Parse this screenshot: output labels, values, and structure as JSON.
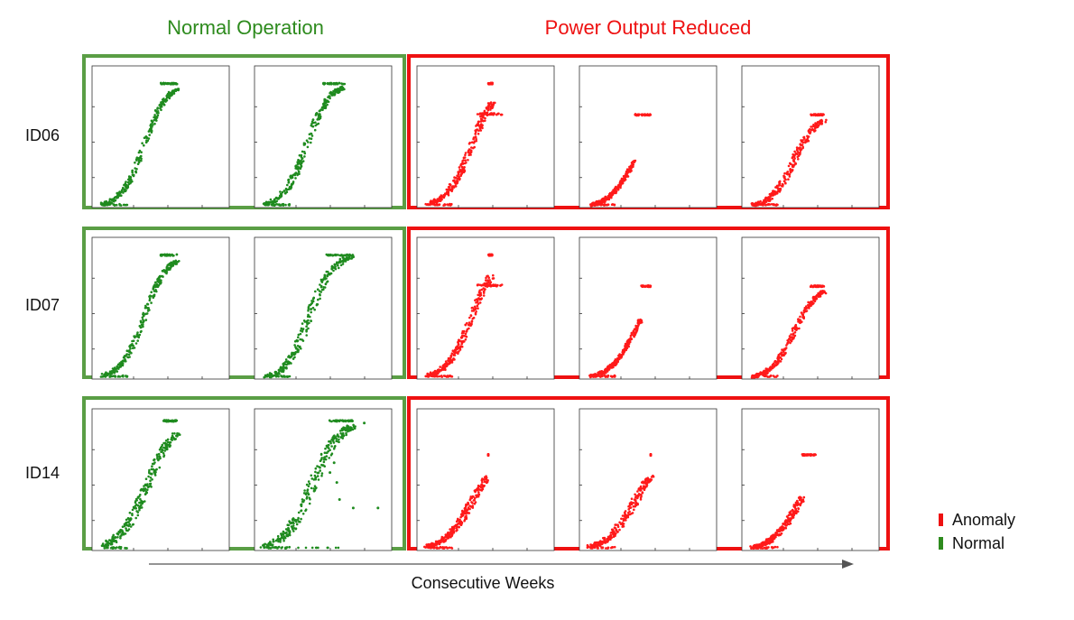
{
  "group_titles": {
    "normal": "Normal Operation",
    "anomaly": "Power Output Reduced"
  },
  "legend": [
    {
      "label": "Anomaly",
      "color": "#ee1111"
    },
    {
      "label": "Normal",
      "color": "#2e8b1e"
    }
  ],
  "x_axis_label": "Consecutive Weeks",
  "colors": {
    "normal": "#1f8b1f",
    "anomaly": "#ff1a1a",
    "normal_frame": "#5a9e45",
    "anomaly_frame": "#ee1111"
  },
  "chart_data": {
    "type": "scatter",
    "description_of_grid": "small multiples: 3 turbine rows x 5 consecutive weeks; each panel shows a sigmoid power curve scatter (x and y unlabeled, normalized 0-1)",
    "xlim": [
      0,
      1
    ],
    "ylim": [
      0,
      1
    ],
    "rows": [
      {
        "id": "ID06",
        "panels": [
          {
            "status": "Normal",
            "curve": {
              "x0": 0.38,
              "k": 12,
              "cap": 0.88,
              "xmax": 0.62,
              "spread": 0.04
            }
          },
          {
            "status": "Normal",
            "curve": {
              "x0": 0.38,
              "k": 12,
              "cap": 0.88,
              "xmax": 0.66,
              "spread": 0.05
            }
          },
          {
            "status": "Anomaly",
            "curve": {
              "x0": 0.4,
              "k": 11,
              "cap": 0.88,
              "xmax": 0.55,
              "spread": 0.05,
              "second_cap": 0.66,
              "second_xmax": 0.62
            }
          },
          {
            "status": "Anomaly",
            "curve": {
              "x0": 0.4,
              "k": 11,
              "cap": 0.66,
              "xmax": 0.4,
              "spread": 0.03
            }
          },
          {
            "status": "Anomaly",
            "curve": {
              "x0": 0.38,
              "k": 12,
              "cap": 0.66,
              "xmax": 0.6,
              "spread": 0.05
            }
          }
        ]
      },
      {
        "id": "ID07",
        "panels": [
          {
            "status": "Normal",
            "curve": {
              "x0": 0.38,
              "k": 12,
              "cap": 0.88,
              "xmax": 0.62,
              "spread": 0.04
            }
          },
          {
            "status": "Normal",
            "curve": {
              "x0": 0.4,
              "k": 12,
              "cap": 0.88,
              "xmax": 0.72,
              "spread": 0.06
            }
          },
          {
            "status": "Anomaly",
            "curve": {
              "x0": 0.4,
              "k": 11,
              "cap": 0.88,
              "xmax": 0.55,
              "spread": 0.05,
              "second_cap": 0.66,
              "second_xmax": 0.62
            }
          },
          {
            "status": "Anomaly",
            "curve": {
              "x0": 0.4,
              "k": 11,
              "cap": 0.66,
              "xmax": 0.45,
              "spread": 0.03
            }
          },
          {
            "status": "Anomaly",
            "curve": {
              "x0": 0.38,
              "k": 12,
              "cap": 0.66,
              "xmax": 0.6,
              "spread": 0.04
            }
          }
        ]
      },
      {
        "id": "ID14",
        "panels": [
          {
            "status": "Normal",
            "curve": {
              "x0": 0.4,
              "k": 10,
              "cap": 0.92,
              "xmax": 0.62,
              "spread": 0.07
            }
          },
          {
            "status": "Normal",
            "curve": {
              "x0": 0.42,
              "k": 10,
              "cap": 0.92,
              "xmax": 0.72,
              "spread": 0.08,
              "outliers": true
            }
          },
          {
            "status": "Anomaly",
            "curve": {
              "x0": 0.4,
              "k": 10,
              "cap": 0.68,
              "xmax": 0.52,
              "spread": 0.06
            }
          },
          {
            "status": "Anomaly",
            "curve": {
              "x0": 0.4,
              "k": 10,
              "cap": 0.68,
              "xmax": 0.52,
              "spread": 0.06
            }
          },
          {
            "status": "Anomaly",
            "curve": {
              "x0": 0.42,
              "k": 10,
              "cap": 0.68,
              "xmax": 0.44,
              "spread": 0.05
            }
          }
        ]
      }
    ]
  }
}
